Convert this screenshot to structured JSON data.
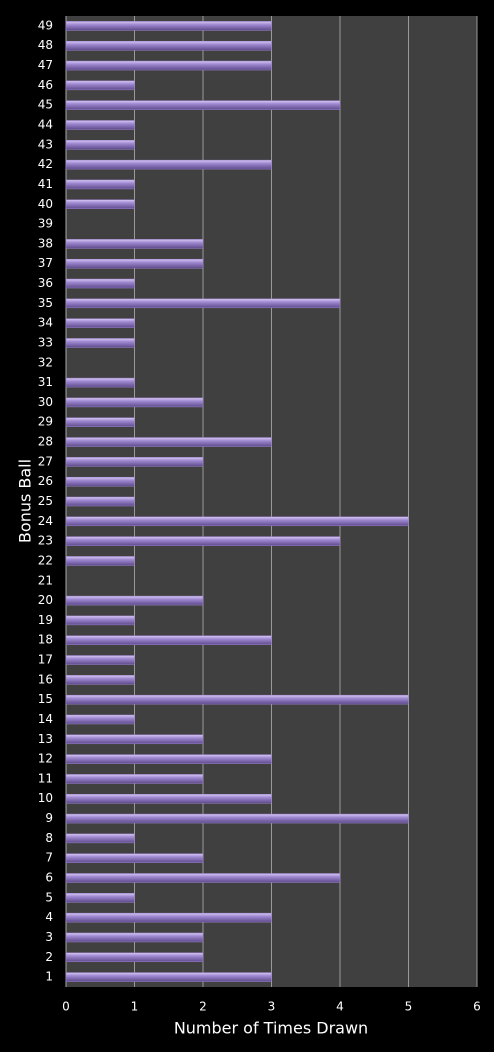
{
  "chart_data": {
    "type": "bar",
    "orientation": "horizontal",
    "x_label": "Number of Times Drawn",
    "y_label": "Bonus Ball",
    "categories": [
      "1",
      "2",
      "3",
      "4",
      "5",
      "6",
      "7",
      "8",
      "9",
      "10",
      "11",
      "12",
      "13",
      "14",
      "15",
      "16",
      "17",
      "18",
      "19",
      "20",
      "21",
      "22",
      "23",
      "24",
      "25",
      "26",
      "27",
      "28",
      "29",
      "30",
      "31",
      "32",
      "33",
      "34",
      "35",
      "36",
      "37",
      "38",
      "39",
      "40",
      "41",
      "42",
      "43",
      "44",
      "45",
      "46",
      "47",
      "48",
      "49"
    ],
    "values": [
      3,
      2,
      2,
      3,
      1,
      4,
      2,
      1,
      5,
      3,
      2,
      3,
      2,
      1,
      5,
      1,
      1,
      3,
      1,
      2,
      0,
      1,
      4,
      5,
      1,
      1,
      2,
      3,
      1,
      2,
      1,
      0,
      1,
      1,
      4,
      1,
      2,
      2,
      0,
      1,
      1,
      3,
      1,
      1,
      4,
      1,
      3,
      3,
      3
    ],
    "color": "#9f85d0",
    "xlim": [
      0,
      6
    ],
    "xticks": [
      0,
      1,
      2,
      3,
      4,
      5,
      6
    ],
    "grid": true
  }
}
